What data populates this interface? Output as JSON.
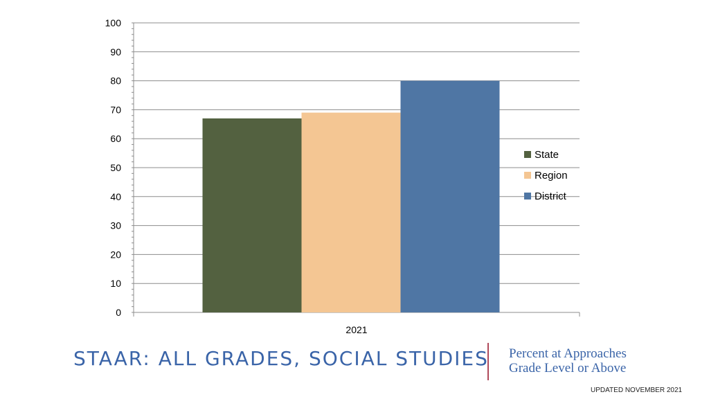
{
  "chart_data": {
    "type": "bar",
    "categories": [
      "2021"
    ],
    "series": [
      {
        "name": "State",
        "values": [
          67
        ],
        "color": "#536140"
      },
      {
        "name": "Region",
        "values": [
          69
        ],
        "color": "#f4c693"
      },
      {
        "name": "District",
        "values": [
          80
        ],
        "color": "#4f76a4"
      }
    ],
    "ylim": [
      0,
      100
    ],
    "yticks": [
      0,
      10,
      20,
      30,
      40,
      50,
      60,
      70,
      80,
      90,
      100
    ],
    "grid": true,
    "legend": "right",
    "title": "",
    "xlabel": "",
    "ylabel": ""
  },
  "footer": {
    "title": "STAAR:  ALL GRADES, SOCIAL STUDIES",
    "subtitle_line1": "Percent at Approaches",
    "subtitle_line2": "Grade Level or Above",
    "updated": "UPDATED NOVEMBER 2021"
  },
  "colors": {
    "footer_text": "#3a64a8",
    "divider": "#b0495a"
  }
}
